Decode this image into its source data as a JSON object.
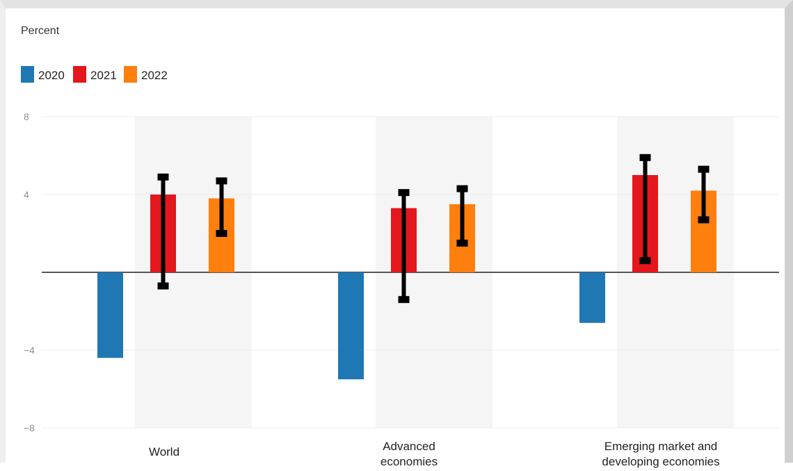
{
  "chart_data": {
    "type": "bar",
    "unit_label": "Percent",
    "categories": [
      [
        "World"
      ],
      [
        "Advanced",
        "economies"
      ],
      [
        "Emerging market and",
        "developing economies"
      ]
    ],
    "series": [
      {
        "name": "2020",
        "color": "#1f77b4",
        "values": [
          -4.4,
          -5.5,
          -2.6
        ],
        "error_low": [
          null,
          null,
          null
        ],
        "error_high": [
          null,
          null,
          null
        ]
      },
      {
        "name": "2021",
        "color": "#e3171d",
        "values": [
          4.0,
          3.3,
          5.0
        ],
        "error_low": [
          -0.7,
          -1.4,
          0.6
        ],
        "error_high": [
          4.9,
          4.1,
          5.9
        ]
      },
      {
        "name": "2022",
        "color": "#ff7f0e",
        "values": [
          3.8,
          3.5,
          4.2
        ],
        "error_low": [
          2.0,
          1.5,
          2.7
        ],
        "error_high": [
          4.7,
          4.3,
          5.3
        ]
      }
    ],
    "yticks": [
      8,
      4,
      -4,
      -8
    ],
    "ylim": [
      -8,
      8
    ],
    "grid": true,
    "legend_position": "top-left"
  }
}
